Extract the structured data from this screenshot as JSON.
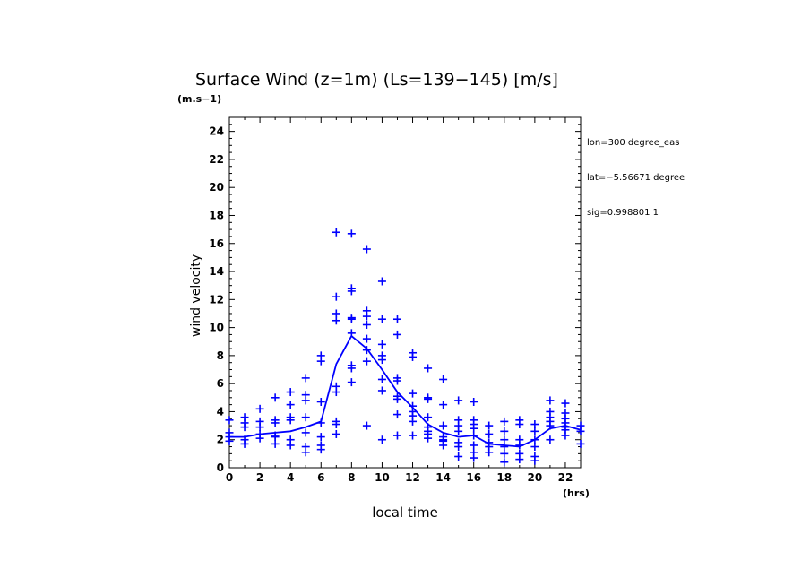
{
  "chart": {
    "title": "Surface Wind (z=1m) (Ls=139−145) [m/s]",
    "units_label": "(m.s−1)",
    "xlabel": "local time",
    "x_units": "(hrs)",
    "ylabel": "wind velocity",
    "info_lines": [
      "lon=300 degree_eas",
      "lat=−5.56671 degree",
      "sig=0.998801 1"
    ]
  },
  "colors": {
    "series": "#0000ff",
    "axis": "#000000"
  },
  "chart_data": {
    "type": "scatter",
    "title": "Surface Wind (z=1m) (Ls=139−145) [m/s]",
    "xlabel": "local time",
    "ylabel": "wind velocity",
    "xlim": [
      0,
      23
    ],
    "ylim": [
      0,
      25
    ],
    "x_ticks": [
      0,
      2,
      4,
      6,
      8,
      10,
      12,
      14,
      16,
      18,
      20,
      22
    ],
    "y_ticks": [
      0,
      2,
      4,
      6,
      8,
      10,
      12,
      14,
      16,
      18,
      20,
      22,
      24
    ],
    "grid": false,
    "series": [
      {
        "type": "scatter",
        "points": [
          [
            0,
            3.4
          ],
          [
            0,
            2.5
          ],
          [
            0,
            2.2
          ],
          [
            0,
            1.9
          ],
          [
            1,
            3.6
          ],
          [
            1,
            3.2
          ],
          [
            1,
            2.9
          ],
          [
            1,
            2.0
          ],
          [
            1,
            1.7
          ],
          [
            2,
            4.2
          ],
          [
            2,
            3.3
          ],
          [
            2,
            2.9
          ],
          [
            2,
            2.4
          ],
          [
            2,
            2.1
          ],
          [
            3,
            5.0
          ],
          [
            3,
            3.4
          ],
          [
            3,
            3.2
          ],
          [
            3,
            2.3
          ],
          [
            3,
            2.2
          ],
          [
            3,
            1.7
          ],
          [
            4,
            5.4
          ],
          [
            4,
            4.5
          ],
          [
            4,
            3.6
          ],
          [
            4,
            3.4
          ],
          [
            4,
            2.0
          ],
          [
            4,
            1.6
          ],
          [
            5,
            6.4
          ],
          [
            5,
            5.2
          ],
          [
            5,
            4.8
          ],
          [
            5,
            3.6
          ],
          [
            5,
            2.5
          ],
          [
            5,
            1.5
          ],
          [
            5,
            1.1
          ],
          [
            6,
            8.0
          ],
          [
            6,
            7.6
          ],
          [
            6,
            4.7
          ],
          [
            6,
            3.2
          ],
          [
            6,
            2.2
          ],
          [
            6,
            1.6
          ],
          [
            6,
            1.3
          ],
          [
            7,
            16.8
          ],
          [
            7,
            12.2
          ],
          [
            7,
            11.0
          ],
          [
            7,
            10.5
          ],
          [
            7,
            5.8
          ],
          [
            7,
            5.4
          ],
          [
            7,
            3.3
          ],
          [
            7,
            3.1
          ],
          [
            7,
            2.4
          ],
          [
            8,
            16.7
          ],
          [
            8,
            12.8
          ],
          [
            8,
            12.6
          ],
          [
            8,
            10.7
          ],
          [
            8,
            10.6
          ],
          [
            8,
            9.6
          ],
          [
            8,
            7.3
          ],
          [
            8,
            7.1
          ],
          [
            8,
            6.1
          ],
          [
            9,
            15.6
          ],
          [
            9,
            11.2
          ],
          [
            9,
            10.8
          ],
          [
            9,
            10.2
          ],
          [
            9,
            9.2
          ],
          [
            9,
            8.4
          ],
          [
            9,
            7.6
          ],
          [
            9,
            3.0
          ],
          [
            10,
            13.3
          ],
          [
            10,
            10.6
          ],
          [
            10,
            8.8
          ],
          [
            10,
            8.0
          ],
          [
            10,
            7.7
          ],
          [
            10,
            6.3
          ],
          [
            10,
            5.5
          ],
          [
            10,
            2.0
          ],
          [
            11,
            10.6
          ],
          [
            11,
            9.5
          ],
          [
            11,
            6.4
          ],
          [
            11,
            6.2
          ],
          [
            11,
            5.1
          ],
          [
            11,
            4.9
          ],
          [
            11,
            3.8
          ],
          [
            11,
            2.3
          ],
          [
            12,
            8.2
          ],
          [
            12,
            7.9
          ],
          [
            12,
            5.3
          ],
          [
            12,
            4.4
          ],
          [
            12,
            4.0
          ],
          [
            12,
            3.7
          ],
          [
            12,
            3.3
          ],
          [
            12,
            2.3
          ],
          [
            13,
            7.1
          ],
          [
            13,
            5.0
          ],
          [
            13,
            4.9
          ],
          [
            13,
            3.6
          ],
          [
            13,
            2.9
          ],
          [
            13,
            2.6
          ],
          [
            13,
            2.4
          ],
          [
            13,
            2.1
          ],
          [
            14,
            6.3
          ],
          [
            14,
            4.5
          ],
          [
            14,
            3.0
          ],
          [
            14,
            2.2
          ],
          [
            14,
            2.0
          ],
          [
            14,
            1.9
          ],
          [
            14,
            1.6
          ],
          [
            15,
            4.8
          ],
          [
            15,
            3.4
          ],
          [
            15,
            3.0
          ],
          [
            15,
            2.6
          ],
          [
            15,
            1.8
          ],
          [
            15,
            1.5
          ],
          [
            15,
            0.8
          ],
          [
            16,
            4.7
          ],
          [
            16,
            3.4
          ],
          [
            16,
            3.1
          ],
          [
            16,
            2.8
          ],
          [
            16,
            2.3
          ],
          [
            16,
            1.6
          ],
          [
            16,
            1.1
          ],
          [
            16,
            0.7
          ],
          [
            17,
            3.0
          ],
          [
            17,
            2.4
          ],
          [
            17,
            1.8
          ],
          [
            17,
            1.5
          ],
          [
            17,
            1.1
          ],
          [
            18,
            3.3
          ],
          [
            18,
            2.6
          ],
          [
            18,
            2.0
          ],
          [
            18,
            1.5
          ],
          [
            18,
            1.0
          ],
          [
            18,
            0.4
          ],
          [
            19,
            3.4
          ],
          [
            19,
            3.1
          ],
          [
            19,
            2.0
          ],
          [
            19,
            1.6
          ],
          [
            19,
            1.0
          ],
          [
            19,
            0.6
          ],
          [
            20,
            3.1
          ],
          [
            20,
            2.6
          ],
          [
            20,
            2.0
          ],
          [
            20,
            1.5
          ],
          [
            20,
            0.8
          ],
          [
            20,
            0.5
          ],
          [
            21,
            4.8
          ],
          [
            21,
            4.0
          ],
          [
            21,
            3.6
          ],
          [
            21,
            3.3
          ],
          [
            21,
            3.0
          ],
          [
            21,
            2.0
          ],
          [
            22,
            4.6
          ],
          [
            22,
            3.9
          ],
          [
            22,
            3.5
          ],
          [
            22,
            3.2
          ],
          [
            22,
            2.9
          ],
          [
            22,
            2.7
          ],
          [
            22,
            2.3
          ],
          [
            23,
            3.0
          ],
          [
            23,
            2.6
          ],
          [
            23,
            1.7
          ]
        ]
      },
      {
        "type": "line",
        "x": [
          0,
          1,
          2,
          3,
          4,
          5,
          6,
          7,
          8,
          9,
          10,
          11,
          12,
          13,
          14,
          15,
          16,
          17,
          18,
          19,
          20,
          21,
          22,
          23
        ],
        "y": [
          2.2,
          2.2,
          2.4,
          2.5,
          2.6,
          2.9,
          3.3,
          7.4,
          9.4,
          8.5,
          7.0,
          5.4,
          4.3,
          3.1,
          2.5,
          2.2,
          2.3,
          1.7,
          1.6,
          1.5,
          2.0,
          2.8,
          3.0,
          2.7
        ]
      }
    ]
  }
}
